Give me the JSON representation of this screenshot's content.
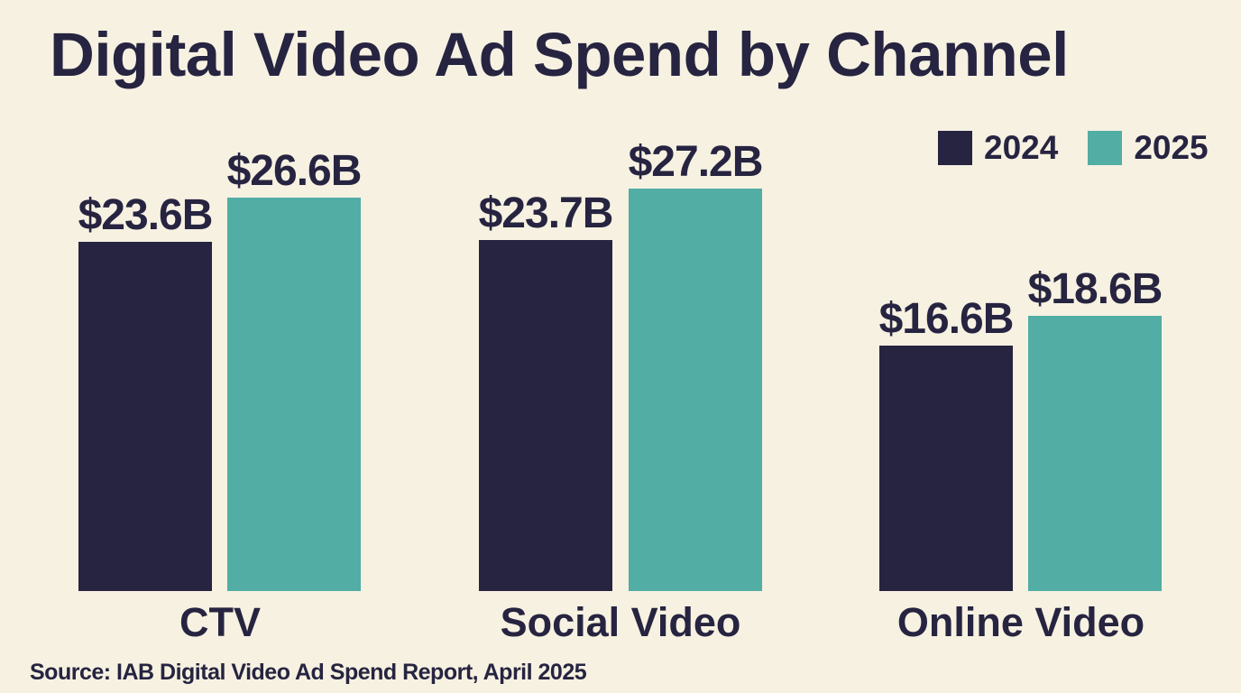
{
  "title": "Digital Video Ad Spend by Channel",
  "source": "Source: IAB Digital Video Ad Spend Report, April 2025",
  "colors": {
    "background": "#f6f1e1",
    "text": "#262440",
    "bar_2024": "#262440",
    "bar_2025": "#52ada5"
  },
  "legend": [
    {
      "label": "2024",
      "color": "#262440"
    },
    {
      "label": "2025",
      "color": "#52ada5"
    }
  ],
  "chart_data": {
    "type": "bar",
    "title": "Digital Video Ad Spend by Channel",
    "categories": [
      "CTV",
      "Social Video",
      "Online Video"
    ],
    "series": [
      {
        "name": "2024",
        "values": [
          23.6,
          23.7,
          16.6
        ],
        "labels": [
          "$23.6B",
          "$23.7B",
          "$16.6B"
        ]
      },
      {
        "name": "2025",
        "values": [
          26.6,
          27.2,
          18.6
        ],
        "labels": [
          "$26.6B",
          "$27.2B",
          "$18.6B"
        ]
      }
    ],
    "ylim": [
      0,
      27.2
    ],
    "legend_position": "top-right",
    "grid": false
  }
}
